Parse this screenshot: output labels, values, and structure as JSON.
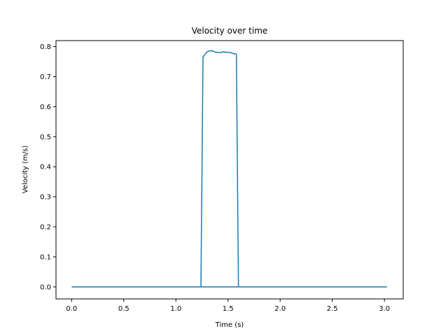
{
  "chart_data": {
    "type": "line",
    "title": "Velocity over time",
    "xlabel": "Time (s)",
    "ylabel": "Velocity (m/s)",
    "xlim": [
      -0.15,
      3.18
    ],
    "ylim": [
      -0.04,
      0.82
    ],
    "xticks": [
      0.0,
      0.5,
      1.0,
      1.5,
      2.0,
      2.5,
      3.0
    ],
    "xtick_labels": [
      "0.0",
      "0.5",
      "1.0",
      "1.5",
      "2.0",
      "2.5",
      "3.0"
    ],
    "yticks": [
      0.0,
      0.1,
      0.2,
      0.3,
      0.4,
      0.5,
      0.6,
      0.7,
      0.8
    ],
    "ytick_labels": [
      "0.0",
      "0.1",
      "0.2",
      "0.3",
      "0.4",
      "0.5",
      "0.6",
      "0.7",
      "0.8"
    ],
    "grid": false,
    "series": [
      {
        "color": "#1f77b4",
        "x": [
          0.0,
          1.22,
          1.24,
          1.26,
          1.28,
          1.3,
          1.32,
          1.34,
          1.36,
          1.38,
          1.4,
          1.42,
          1.44,
          1.46,
          1.48,
          1.5,
          1.52,
          1.54,
          1.56,
          1.58,
          1.6,
          1.62,
          3.02,
          0.2,
          1.05
        ],
        "y": [
          0.0,
          0.0,
          0.0,
          0.765,
          0.775,
          0.783,
          0.786,
          0.786,
          0.785,
          0.781,
          0.781,
          0.78,
          0.781,
          0.783,
          0.781,
          0.781,
          0.781,
          0.778,
          0.776,
          0.775,
          0.0,
          0.0,
          0.0,
          0.0,
          0.0
        ]
      }
    ]
  }
}
